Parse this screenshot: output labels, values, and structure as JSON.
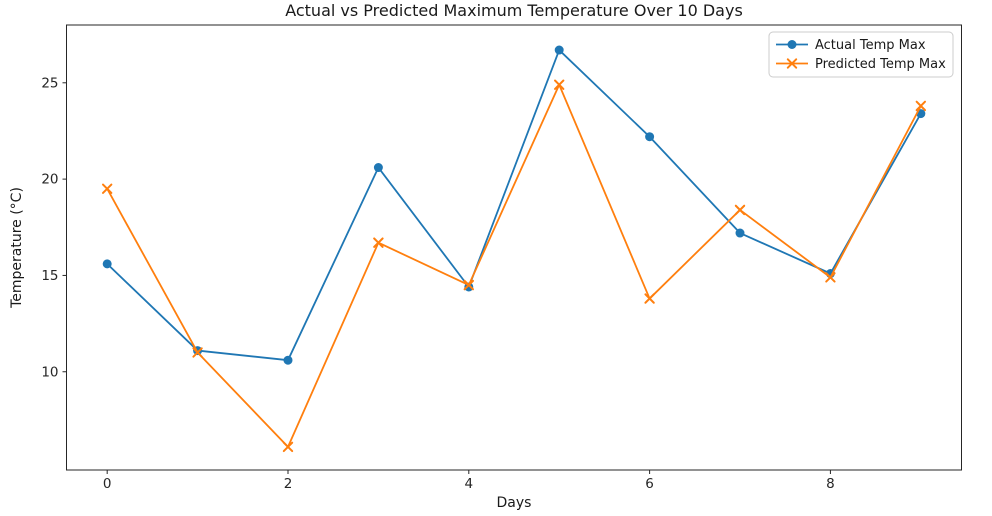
{
  "chart_data": {
    "type": "line",
    "title": "Actual vs Predicted Maximum Temperature Over 10 Days",
    "xlabel": "Days",
    "ylabel": "Temperature (°C)",
    "x": [
      0,
      1,
      2,
      3,
      4,
      5,
      6,
      7,
      8,
      9
    ],
    "series": [
      {
        "name": "Actual Temp Max",
        "marker": "circle",
        "color": "#1f77b4",
        "values": [
          15.6,
          11.1,
          10.6,
          20.6,
          14.4,
          26.7,
          22.2,
          17.2,
          15.1,
          23.4
        ]
      },
      {
        "name": "Predicted Temp Max",
        "marker": "x",
        "color": "#ff7f0e",
        "values": [
          19.5,
          11.0,
          6.1,
          16.7,
          14.5,
          24.9,
          13.8,
          18.4,
          14.9,
          23.8
        ]
      }
    ],
    "xticks": [
      0,
      2,
      4,
      6,
      8
    ],
    "yticks": [
      10,
      15,
      20,
      25
    ],
    "xlim": [
      -0.45,
      9.45
    ],
    "ylim": [
      4.9,
      28.0
    ],
    "grid": false,
    "legend_position": "top-right",
    "spine_color": "#262626",
    "background_color": "#ffffff",
    "legend_border_color": "#cccccc"
  }
}
